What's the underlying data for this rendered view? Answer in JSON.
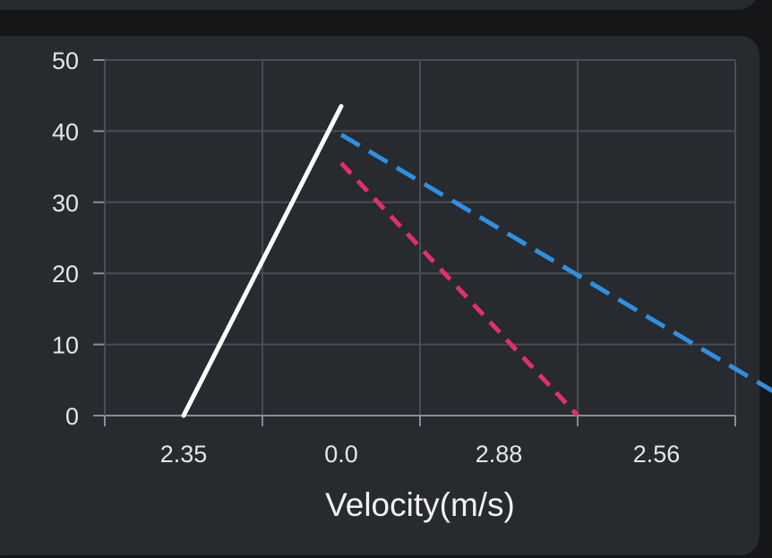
{
  "chart_data": {
    "type": "line",
    "xlabel": "Velocity(m/s)",
    "ylabel": "",
    "categories": [
      "2.35",
      "0.0",
      "2.88",
      "2.56"
    ],
    "ylim": [
      0,
      50
    ],
    "yticks": [
      0,
      10,
      20,
      30,
      40,
      50
    ],
    "grid": true,
    "series": [
      {
        "color": "#ffffff",
        "dash": "solid",
        "points": [
          [
            0.5,
            0
          ],
          [
            1.5,
            43.5
          ]
        ]
      },
      {
        "color": "#2f8fe0",
        "dash": "dashed",
        "points": [
          [
            1.5,
            39.5
          ],
          [
            4.5,
            0
          ]
        ]
      },
      {
        "color": "#e0306a",
        "dash": "dashed",
        "points": [
          [
            1.5,
            35.5
          ],
          [
            3.0,
            0
          ]
        ]
      }
    ]
  }
}
